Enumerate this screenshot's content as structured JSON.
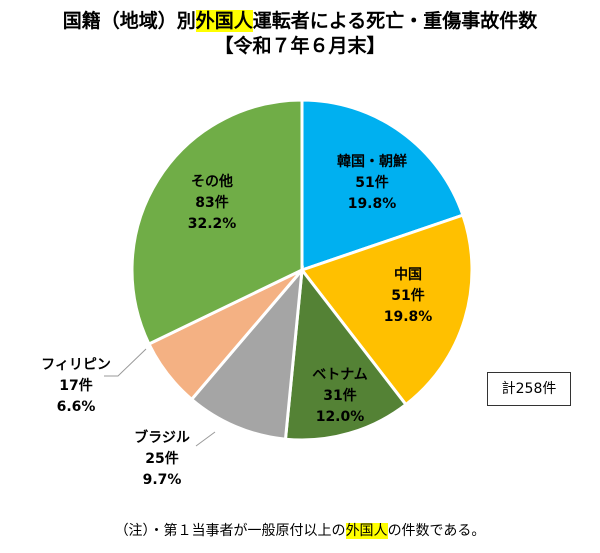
{
  "title": {
    "before": "国籍（地域）別",
    "highlight": "外国人",
    "after": "運転者による死亡・重傷事故件数",
    "line2": "【令和７年６月末】"
  },
  "chart_data": {
    "type": "pie",
    "title": "国籍（地域）別外国人運転者による死亡・重傷事故件数【令和７年６月末】",
    "start": "12 o'clock, clockwise",
    "slices": [
      {
        "name": "韓国・朝鮮",
        "value": 51,
        "count_label": "51件",
        "pct_label": "19.8%",
        "color": "#00B0F0"
      },
      {
        "name": "中国",
        "value": 51,
        "count_label": "51件",
        "pct_label": "19.8%",
        "color": "#FFC000"
      },
      {
        "name": "ベトナム",
        "value": 31,
        "count_label": "31件",
        "pct_label": "12.0%",
        "color": "#548235"
      },
      {
        "name": "ブラジル",
        "value": 25,
        "count_label": "25件",
        "pct_label": "9.7%",
        "color": "#A5A5A5"
      },
      {
        "name": "フィリピン",
        "value": 17,
        "count_label": "17件",
        "pct_label": "6.6%",
        "color": "#F4B183"
      },
      {
        "name": "その他",
        "value": 83,
        "count_label": "83件",
        "pct_label": "32.2%",
        "color": "#70AD47"
      }
    ],
    "total_label": "計258件"
  },
  "note": {
    "before": "（注）・第１当事者が一般原付以上の",
    "highlight": "外国人",
    "after": "の件数である。"
  }
}
